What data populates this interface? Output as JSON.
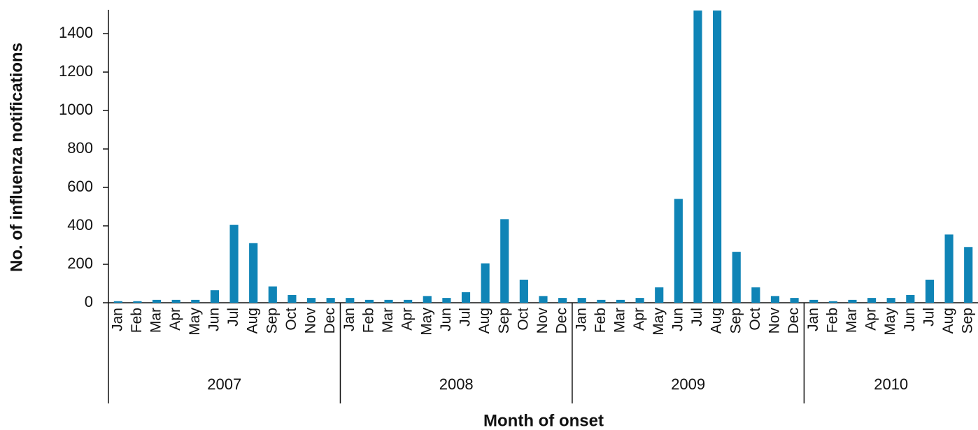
{
  "chart_data": {
    "type": "bar",
    "y_label": "No. of influenza notifications",
    "x_label": "Month of onset",
    "color": "#0f84b6",
    "groups": [
      {
        "label": "2007",
        "categories": [
          "Jan",
          "Feb",
          "Mar",
          "Apr",
          "May",
          "Jun",
          "Jul",
          "Aug",
          "Sep",
          "Oct",
          "Nov",
          "Dec"
        ]
      },
      {
        "label": "2008",
        "categories": [
          "Jan",
          "Feb",
          "Mar",
          "Apr",
          "May",
          "Jun",
          "Jul",
          "Aug",
          "Sep",
          "Oct",
          "Nov",
          "Dec"
        ]
      },
      {
        "label": "2009",
        "categories": [
          "Jan",
          "Feb",
          "Mar",
          "Apr",
          "May",
          "Jun",
          "Jul",
          "Aug",
          "Sep",
          "Oct",
          "Nov",
          "Dec"
        ]
      },
      {
        "label": "2010",
        "categories": [
          "Jan",
          "Feb",
          "Mar",
          "Apr",
          "May",
          "Jun",
          "Jul",
          "Aug",
          "Sep"
        ]
      }
    ],
    "values": [
      8,
      8,
      15,
      15,
      15,
      65,
      405,
      310,
      85,
      40,
      25,
      25,
      25,
      15,
      15,
      15,
      35,
      25,
      55,
      205,
      435,
      120,
      35,
      25,
      25,
      15,
      15,
      25,
      80,
      540,
      1520,
      1520,
      265,
      80,
      35,
      25,
      15,
      8,
      15,
      25,
      25,
      40,
      120,
      355,
      290
    ],
    "ylim": [
      0,
      1524
    ],
    "yticks": [
      0,
      200,
      400,
      600,
      800,
      1000,
      1200,
      1400
    ]
  }
}
